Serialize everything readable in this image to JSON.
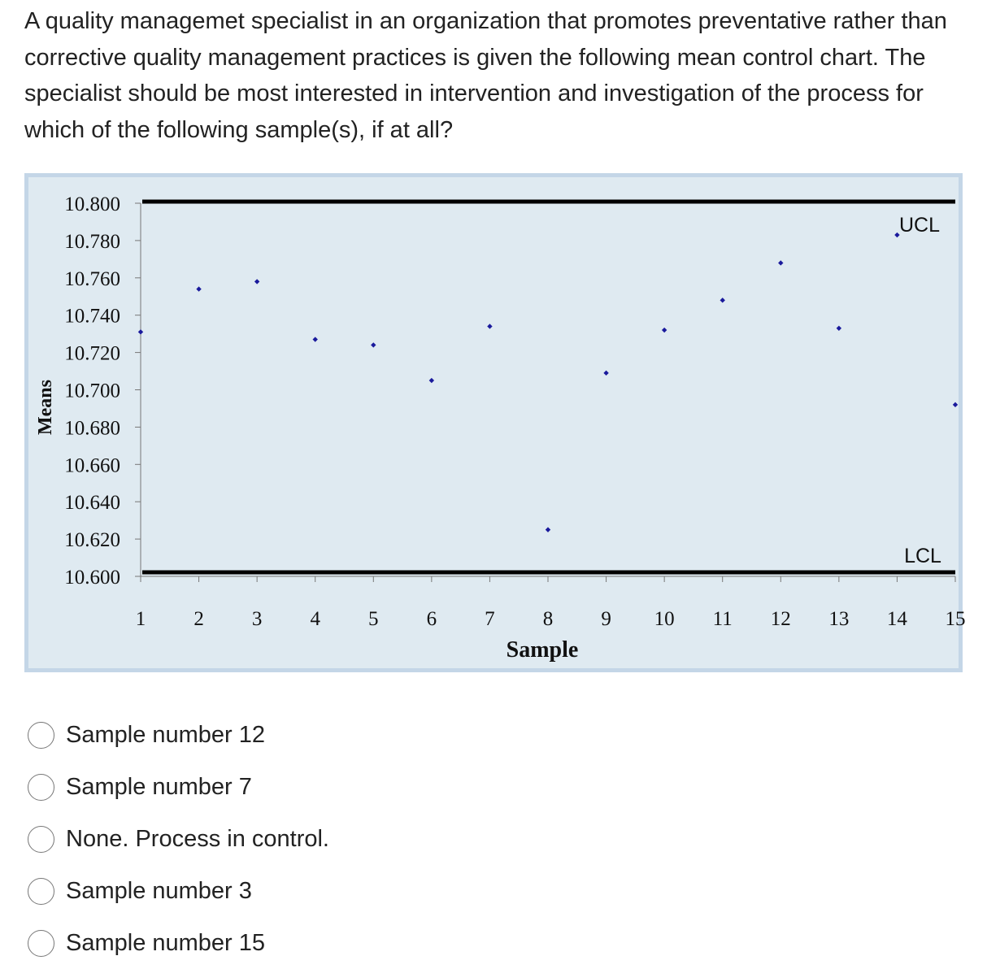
{
  "question": {
    "text": "A quality managemet specialist in an organization that promotes preventative rather than corrective quality management practices is given the following mean control chart. The specialist should be most interested in intervention and investigation of the process for which of the following sample(s), if at all?"
  },
  "chart_data": {
    "type": "scatter",
    "title": "",
    "xlabel": "Sample",
    "ylabel": "Means",
    "x": [
      1,
      2,
      3,
      4,
      5,
      6,
      7,
      8,
      9,
      10,
      11,
      12,
      13,
      14,
      15
    ],
    "y": [
      10.731,
      10.754,
      10.758,
      10.727,
      10.724,
      10.705,
      10.734,
      10.625,
      10.709,
      10.732,
      10.748,
      10.768,
      10.733,
      10.783,
      10.692
    ],
    "ylim": [
      10.6,
      10.8
    ],
    "yticks": [
      "10.800",
      "10.780",
      "10.760",
      "10.740",
      "10.720",
      "10.700",
      "10.680",
      "10.660",
      "10.640",
      "10.620",
      "10.600"
    ],
    "xticks": [
      "1",
      "2",
      "3",
      "4",
      "5",
      "6",
      "7",
      "8",
      "9",
      "10",
      "11",
      "12",
      "13",
      "14",
      "15"
    ],
    "ucl": {
      "label": "UCL",
      "value": 10.8
    },
    "lcl": {
      "label": "LCL",
      "value": 10.6
    },
    "marker_color": "#1a1a9c",
    "line_color": "#000000",
    "background_color": "#dfeaf1",
    "border_color": "#c4d6e7",
    "grid": false,
    "legend": "none"
  },
  "options": [
    {
      "label": "Sample number 12"
    },
    {
      "label": "Sample number 7"
    },
    {
      "label": "None. Process in control."
    },
    {
      "label": "Sample number 3"
    },
    {
      "label": "Sample number 15"
    }
  ]
}
